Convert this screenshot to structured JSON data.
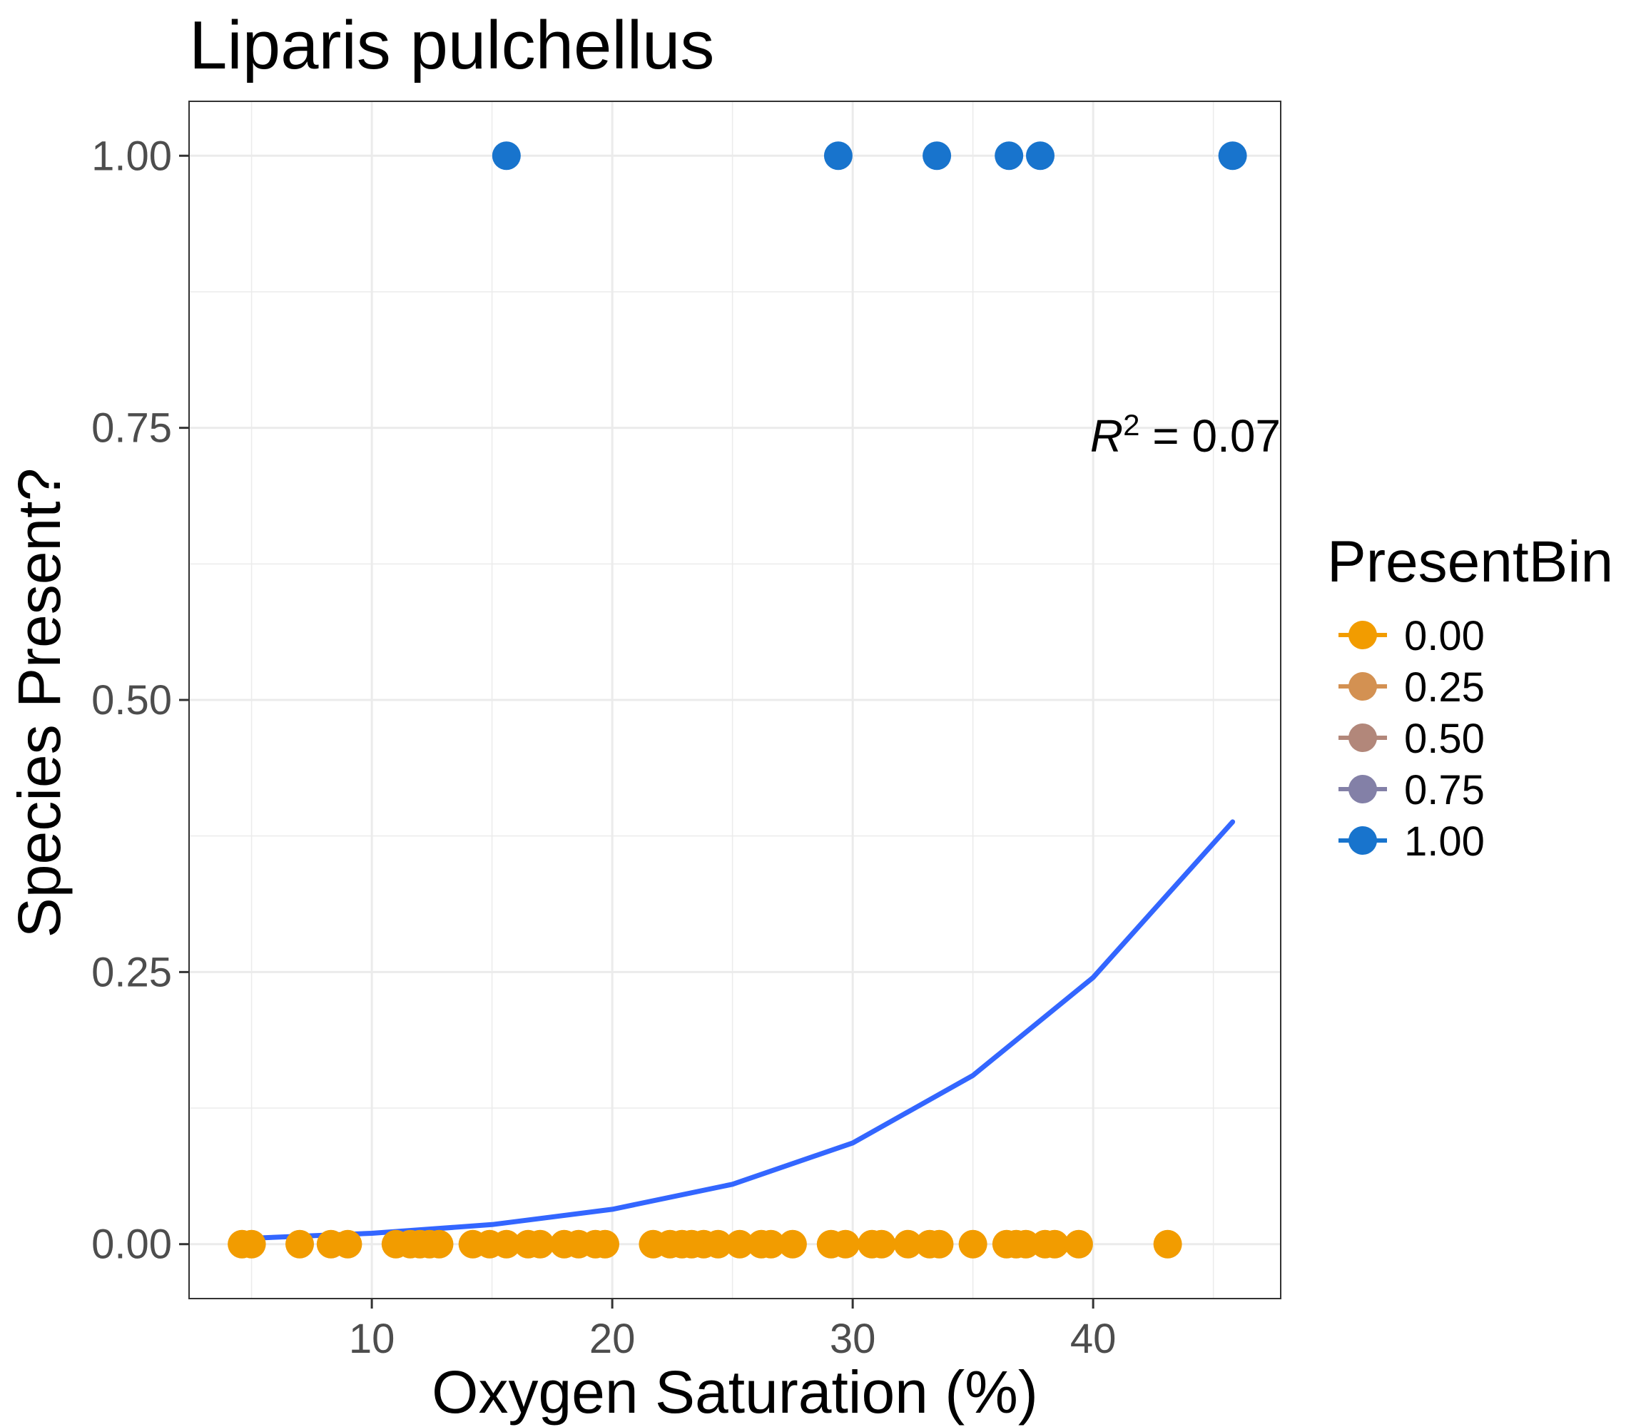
{
  "chart_data": {
    "type": "scatter",
    "title": "Liparis pulchellus",
    "xlabel": "Oxygen Saturation (%)",
    "ylabel": "Species Present?",
    "xlim": [
      2.4,
      47.8
    ],
    "ylim": [
      -0.05,
      1.05
    ],
    "x_ticks": [
      10,
      20,
      30,
      40
    ],
    "y_ticks": [
      0.0,
      0.25,
      0.5,
      0.75,
      1.0
    ],
    "x_tick_labels": [
      "10",
      "20",
      "30",
      "40"
    ],
    "y_tick_labels": [
      "0.00",
      "0.25",
      "0.50",
      "0.75",
      "1.00"
    ],
    "grid": true,
    "legend": {
      "title": "PresentBin",
      "position": "right",
      "entries": [
        {
          "label": "0.00",
          "color": "#f29c00"
        },
        {
          "label": "0.25",
          "color": "#d39152"
        },
        {
          "label": "0.50",
          "color": "#b2877a"
        },
        {
          "label": "0.75",
          "color": "#8380a7"
        },
        {
          "label": "1.00",
          "color": "#1874cd"
        }
      ]
    },
    "annotation": {
      "italic_symbol": "R",
      "superscript": "2",
      "text": " = 0.07"
    },
    "series": [
      {
        "color": "#1874cd",
        "points": [
          [
            15.6,
            1
          ],
          [
            29.4,
            1
          ],
          [
            33.5,
            1
          ],
          [
            36.5,
            1
          ],
          [
            37.8,
            1
          ],
          [
            45.8,
            1
          ]
        ]
      },
      {
        "color": "#f29c00",
        "points": [
          [
            4.6,
            0
          ],
          [
            5.0,
            0
          ],
          [
            7.0,
            0
          ],
          [
            8.3,
            0
          ],
          [
            9.0,
            0
          ],
          [
            11.0,
            0
          ],
          [
            11.6,
            0
          ],
          [
            12.0,
            0
          ],
          [
            12.4,
            0
          ],
          [
            12.8,
            0
          ],
          [
            14.2,
            0
          ],
          [
            14.9,
            0
          ],
          [
            15.6,
            0
          ],
          [
            16.5,
            0
          ],
          [
            17.0,
            0
          ],
          [
            18.0,
            0
          ],
          [
            18.6,
            0
          ],
          [
            19.3,
            0
          ],
          [
            19.7,
            0
          ],
          [
            21.7,
            0
          ],
          [
            22.4,
            0
          ],
          [
            22.9,
            0
          ],
          [
            23.3,
            0
          ],
          [
            23.8,
            0
          ],
          [
            24.4,
            0
          ],
          [
            25.3,
            0
          ],
          [
            26.2,
            0
          ],
          [
            26.6,
            0
          ],
          [
            27.5,
            0
          ],
          [
            29.1,
            0
          ],
          [
            29.7,
            0
          ],
          [
            30.8,
            0
          ],
          [
            31.2,
            0
          ],
          [
            32.3,
            0
          ],
          [
            33.2,
            0
          ],
          [
            33.6,
            0
          ],
          [
            35.0,
            0
          ],
          [
            36.4,
            0
          ],
          [
            36.8,
            0
          ],
          [
            37.2,
            0
          ],
          [
            38.0,
            0
          ],
          [
            38.4,
            0
          ],
          [
            39.4,
            0
          ],
          [
            43.1,
            0
          ]
        ]
      }
    ],
    "fit_curve": {
      "color": "#3366ff",
      "x": [
        4.5,
        10,
        15,
        20,
        25,
        30,
        35,
        40,
        45.8
      ],
      "y": [
        0.005,
        0.01,
        0.018,
        0.032,
        0.055,
        0.093,
        0.155,
        0.245,
        0.388
      ]
    }
  }
}
